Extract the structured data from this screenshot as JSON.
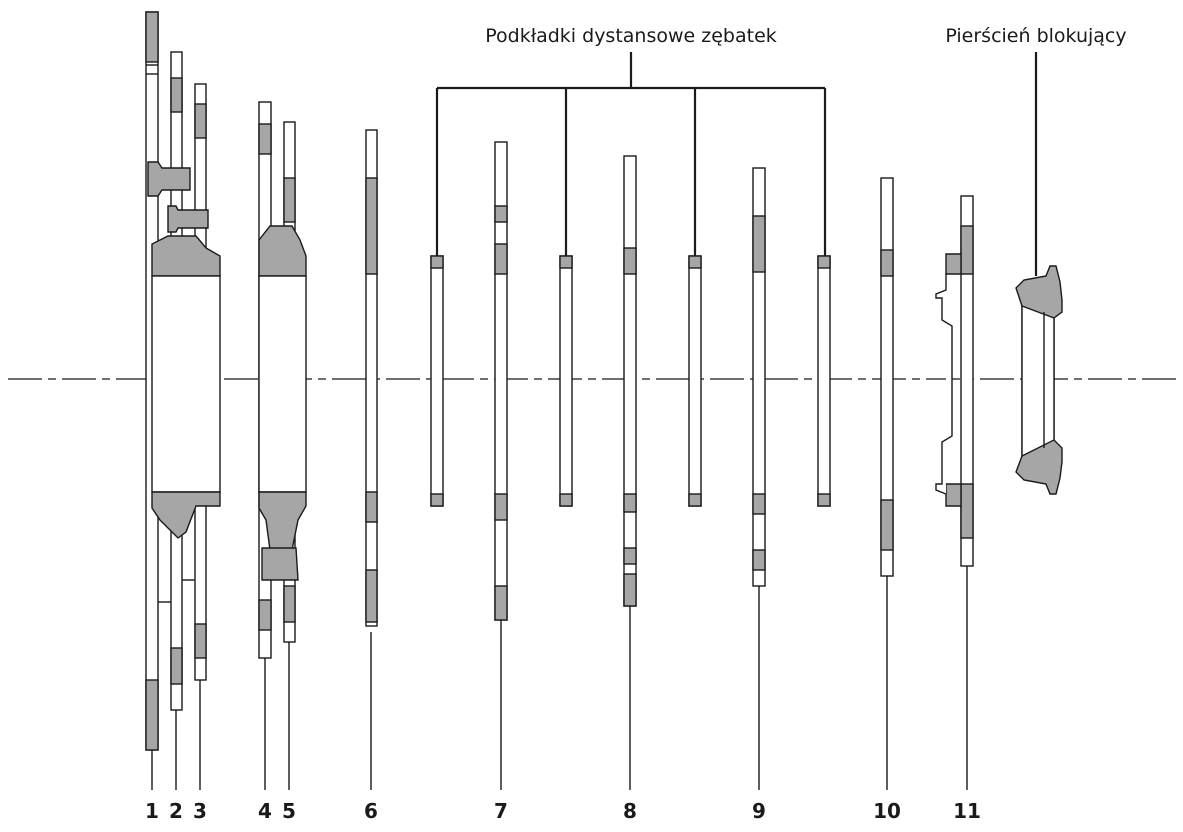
{
  "labels": {
    "spacers": "Podkładki dystansowe zębatek",
    "lockring": "Pierścień blokujący"
  },
  "numbers": [
    "1",
    "2",
    "3",
    "4",
    "5",
    "6",
    "7",
    "8",
    "9",
    "10",
    "11"
  ],
  "colors": {
    "line": "#1a1a1a",
    "fill_gray": "#a6a6a6",
    "fill_white": "#ffffff"
  }
}
